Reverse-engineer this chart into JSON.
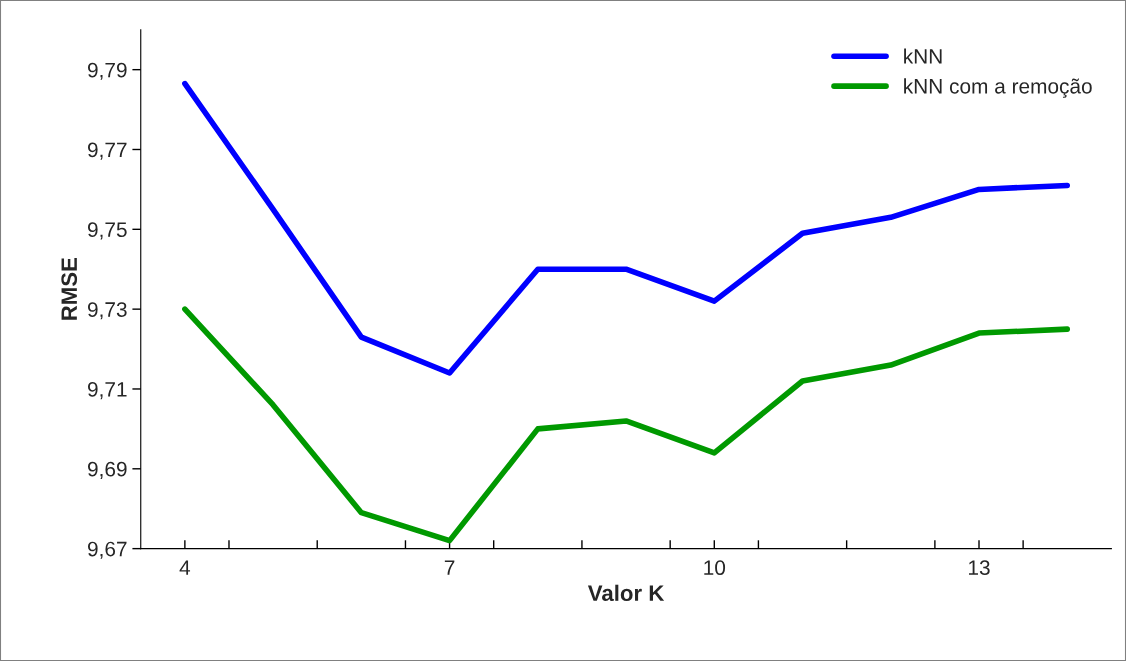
{
  "chart_data": {
    "type": "line",
    "xlabel": "Valor K",
    "ylabel": "RMSE",
    "x": [
      4,
      5,
      6,
      7,
      8,
      9,
      10,
      11,
      12,
      13,
      14
    ],
    "series": [
      {
        "name": "kNN",
        "color": "#0000ff",
        "values": [
          9.7865,
          9.755,
          9.723,
          9.714,
          9.74,
          9.74,
          9.732,
          9.749,
          9.753,
          9.76,
          9.761
        ]
      },
      {
        "name": "kNN com a remoção",
        "color": "#009900",
        "values": [
          9.73,
          9.706,
          9.679,
          9.672,
          9.7,
          9.702,
          9.694,
          9.712,
          9.716,
          9.724,
          9.725
        ]
      }
    ],
    "xlim": [
      3.5,
      14.5
    ],
    "xticks": [
      4,
      {
        "value": 4.5,
        "label": null
      },
      {
        "value": 5.5,
        "label": null
      },
      {
        "value": 6.5,
        "label": null
      },
      7,
      {
        "value": 7.5,
        "label": null
      },
      {
        "value": 8.5,
        "label": null
      },
      {
        "value": 9.5,
        "label": null
      },
      10,
      {
        "value": 10.5,
        "label": null
      },
      {
        "value": 11.5,
        "label": null
      },
      {
        "value": 12.5,
        "label": null
      },
      13,
      {
        "value": 13.5,
        "label": null
      }
    ],
    "ylim": [
      9.67,
      9.8
    ],
    "yticks": [
      {
        "value": 9.67,
        "label": "9,67"
      },
      {
        "value": 9.69,
        "label": "9,69"
      },
      {
        "value": 9.71,
        "label": "9,71"
      },
      {
        "value": 9.73,
        "label": "9,73"
      },
      {
        "value": 9.75,
        "label": "9,75"
      },
      {
        "value": 9.77,
        "label": "9,77"
      },
      {
        "value": 9.79,
        "label": "9,79"
      }
    ],
    "legend": "top right",
    "grid": false,
    "marker": "none",
    "line_style": "solid"
  }
}
